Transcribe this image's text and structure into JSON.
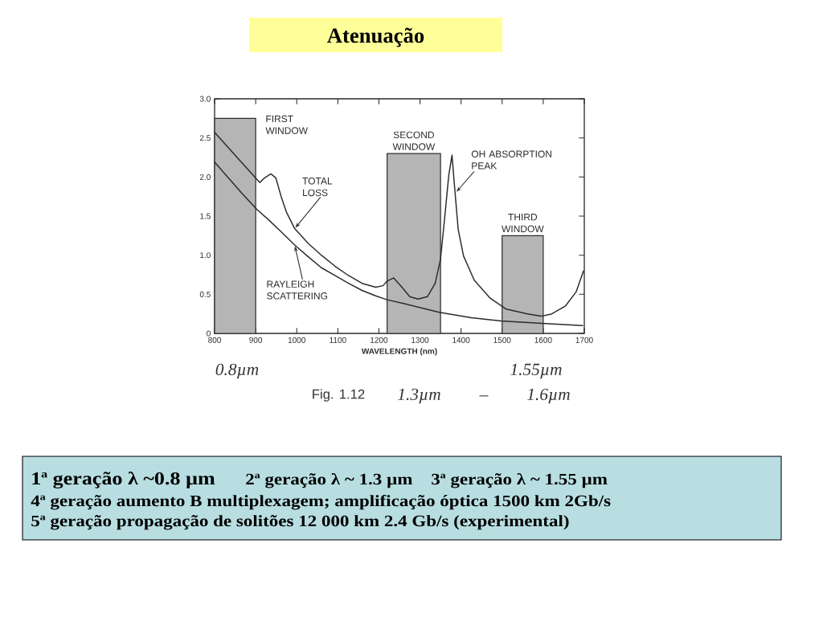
{
  "chart_data": {
    "type": "line",
    "title": "Atenuação",
    "xlabel": "WAVELENGTH (nm)",
    "xlim": [
      800,
      1700
    ],
    "ylim": [
      0,
      3
    ],
    "xticks": [
      800,
      900,
      1000,
      1100,
      1200,
      1300,
      1400,
      1500,
      1600,
      1700
    ],
    "yticks": [
      0,
      0.5,
      {
        "value": 1,
        "label": "1.0"
      },
      1.5,
      {
        "value": 2,
        "label": "2.0"
      },
      2.5,
      {
        "value": 3,
        "label": "3.0"
      }
    ],
    "series": [
      {
        "name": "FIRST WINDOW",
        "type": "histogram",
        "color": "#b5b5b5",
        "bins": [
          800,
          900
        ],
        "values": [
          2.75
        ]
      },
      {
        "name": "SECOND WINDOW",
        "type": "histogram",
        "color": "#b5b5b5",
        "bins": [
          1220,
          1350
        ],
        "values": [
          2.3
        ]
      },
      {
        "name": "THIRD WINDOW",
        "type": "histogram",
        "color": "#b5b5b5",
        "bins": [
          1500,
          1600
        ],
        "values": [
          1.25
        ]
      },
      {
        "name": "TOTAL LOSS",
        "color": "#2b2b2b",
        "x": [
          800,
          865,
          910,
          922,
          937,
          949,
          962,
          975,
          995,
          1028,
          1060,
          1093,
          1126,
          1159,
          1192,
          1210,
          1220,
          1236,
          1256,
          1275,
          1295,
          1318,
          1337,
          1350,
          1360,
          1370,
          1378,
          1383,
          1393,
          1406,
          1432,
          1471,
          1510,
          1562,
          1595,
          1621,
          1654,
          1680,
          1698
        ],
        "values": [
          2.57,
          2.19,
          1.93,
          1.99,
          2.04,
          1.99,
          1.75,
          1.55,
          1.34,
          1.15,
          1.0,
          0.86,
          0.74,
          0.64,
          0.59,
          0.61,
          0.67,
          0.71,
          0.59,
          0.47,
          0.44,
          0.47,
          0.64,
          0.95,
          1.47,
          2.02,
          2.28,
          1.95,
          1.33,
          0.99,
          0.68,
          0.45,
          0.31,
          0.25,
          0.22,
          0.25,
          0.35,
          0.53,
          0.8
        ]
      },
      {
        "name": "RAYLEIGH SCATTERING",
        "color": "#2b2b2b",
        "x": [
          800,
          865,
          904,
          930,
          962,
          995,
          1028,
          1060,
          1093,
          1126,
          1159,
          1192,
          1220,
          1262,
          1347,
          1425,
          1497,
          1588,
          1696
        ],
        "values": [
          2.19,
          1.8,
          1.58,
          1.46,
          1.3,
          1.13,
          0.98,
          0.84,
          0.74,
          0.64,
          0.55,
          0.48,
          0.43,
          0.38,
          0.27,
          0.2,
          0.16,
          0.13,
          0.1
        ]
      }
    ],
    "annotations": [
      {
        "text": "OH ABSORPTION PEAK",
        "x": 1387,
        "y": 1.8
      },
      "0.8µm",
      "1.55µm",
      "Fig. 1.12",
      "1.3µm – 1.6µm",
      "1ª geração λ ~0.8 µm",
      "2ª geração λ ~ 1.3 µm",
      "3ª geração λ ~ 1.55 µm",
      "4ª geração aumento B multiplexagem; amplificação óptica 1500 km 2Gb/s",
      "5ª geração propagação de solitões 12 000 km 2.4 Gb/s (experimental)"
    ]
  }
}
